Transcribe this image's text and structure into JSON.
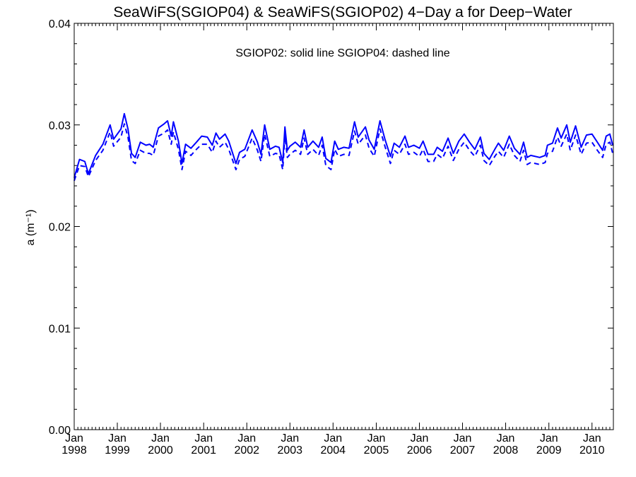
{
  "chart_data": {
    "type": "line",
    "title": "SeaWiFS(SGIOP04) & SeaWiFS(SGIOP02) 4−Day a for Deep−Water",
    "annotation": "SGIOP02: solid line   SGIOP04: dashed line",
    "ylabel": "a (m⁻¹)",
    "xlabel": "",
    "ylim": [
      0.0,
      0.04
    ],
    "xlim": [
      "1998-01-01",
      "2010-07-01"
    ],
    "yticks": [
      "0.00",
      "0.01",
      "0.02",
      "0.03",
      "0.04"
    ],
    "xticks": [
      {
        "month": "Jan",
        "year": "1998"
      },
      {
        "month": "Jan",
        "year": "1999"
      },
      {
        "month": "Jan",
        "year": "2000"
      },
      {
        "month": "Jan",
        "year": "2001"
      },
      {
        "month": "Jan",
        "year": "2002"
      },
      {
        "month": "Jan",
        "year": "2003"
      },
      {
        "month": "Jan",
        "year": "2004"
      },
      {
        "month": "Jan",
        "year": "2005"
      },
      {
        "month": "Jan",
        "year": "2006"
      },
      {
        "month": "Jan",
        "year": "2007"
      },
      {
        "month": "Jan",
        "year": "2008"
      },
      {
        "month": "Jan",
        "year": "2009"
      },
      {
        "month": "Jan",
        "year": "2010"
      }
    ],
    "grid": false,
    "color": "#0000ff",
    "series": [
      {
        "name": "SGIOP02",
        "linestyle": "solid",
        "points": [
          [
            "1998-01-01",
            0.0248
          ],
          [
            "1998-02-15",
            0.0266
          ],
          [
            "1998-04-01",
            0.0264
          ],
          [
            "1998-05-01",
            0.0252
          ],
          [
            "1998-07-01",
            0.027
          ],
          [
            "1998-09-01",
            0.0281
          ],
          [
            "1998-11-01",
            0.03
          ],
          [
            "1998-12-01",
            0.0286
          ],
          [
            "1999-02-01",
            0.0296
          ],
          [
            "1999-03-01",
            0.0311
          ],
          [
            "1999-04-01",
            0.0296
          ],
          [
            "1999-05-01",
            0.0272
          ],
          [
            "1999-06-01",
            0.0268
          ],
          [
            "1999-07-15",
            0.0283
          ],
          [
            "1999-09-01",
            0.028
          ],
          [
            "1999-10-01",
            0.0281
          ],
          [
            "1999-11-01",
            0.0278
          ],
          [
            "1999-12-15",
            0.0297
          ],
          [
            "2000-02-01",
            0.0301
          ],
          [
            "2000-03-01",
            0.0304
          ],
          [
            "2000-04-01",
            0.0289
          ],
          [
            "2000-04-20",
            0.0303
          ],
          [
            "2000-06-01",
            0.0284
          ],
          [
            "2000-07-01",
            0.0262
          ],
          [
            "2000-08-01",
            0.0281
          ],
          [
            "2000-09-15",
            0.0277
          ],
          [
            "2000-11-01",
            0.0283
          ],
          [
            "2000-12-15",
            0.0289
          ],
          [
            "2001-02-01",
            0.0288
          ],
          [
            "2001-03-15",
            0.028
          ],
          [
            "2001-04-15",
            0.0292
          ],
          [
            "2001-05-15",
            0.0286
          ],
          [
            "2001-07-01",
            0.0291
          ],
          [
            "2001-08-01",
            0.0284
          ],
          [
            "2001-10-01",
            0.0262
          ],
          [
            "2001-11-01",
            0.0273
          ],
          [
            "2001-12-15",
            0.0276
          ],
          [
            "2002-02-15",
            0.0295
          ],
          [
            "2002-04-01",
            0.0283
          ],
          [
            "2002-05-01",
            0.0271
          ],
          [
            "2002-06-01",
            0.03
          ],
          [
            "2002-07-15",
            0.0276
          ],
          [
            "2002-09-01",
            0.0279
          ],
          [
            "2002-10-01",
            0.0278
          ],
          [
            "2002-11-01",
            0.0263
          ],
          [
            "2002-11-20",
            0.0298
          ],
          [
            "2002-12-10",
            0.0275
          ],
          [
            "2003-01-01",
            0.0279
          ],
          [
            "2003-02-15",
            0.0283
          ],
          [
            "2003-04-01",
            0.0278
          ],
          [
            "2003-05-01",
            0.0295
          ],
          [
            "2003-06-01",
            0.0278
          ],
          [
            "2003-07-15",
            0.0284
          ],
          [
            "2003-09-01",
            0.0278
          ],
          [
            "2003-10-01",
            0.0288
          ],
          [
            "2003-11-01",
            0.0267
          ],
          [
            "2003-12-15",
            0.0263
          ],
          [
            "2004-01-15",
            0.0284
          ],
          [
            "2004-02-15",
            0.0276
          ],
          [
            "2004-04-01",
            0.0278
          ],
          [
            "2004-05-15",
            0.0277
          ],
          [
            "2004-07-01",
            0.0303
          ],
          [
            "2004-08-01",
            0.0288
          ],
          [
            "2004-10-01",
            0.0298
          ],
          [
            "2004-11-01",
            0.0285
          ],
          [
            "2004-12-15",
            0.0276
          ],
          [
            "2005-02-01",
            0.0304
          ],
          [
            "2005-03-15",
            0.0286
          ],
          [
            "2005-05-01",
            0.0269
          ],
          [
            "2005-06-01",
            0.0282
          ],
          [
            "2005-07-15",
            0.0278
          ],
          [
            "2005-09-01",
            0.0289
          ],
          [
            "2005-10-01",
            0.0278
          ],
          [
            "2005-11-15",
            0.028
          ],
          [
            "2006-01-01",
            0.0277
          ],
          [
            "2006-02-01",
            0.0284
          ],
          [
            "2006-03-15",
            0.0271
          ],
          [
            "2006-05-01",
            0.0271
          ],
          [
            "2006-06-01",
            0.0278
          ],
          [
            "2006-07-15",
            0.0274
          ],
          [
            "2006-09-01",
            0.0287
          ],
          [
            "2006-10-15",
            0.0272
          ],
          [
            "2006-12-01",
            0.0284
          ],
          [
            "2007-01-15",
            0.0291
          ],
          [
            "2007-03-01",
            0.0283
          ],
          [
            "2007-04-15",
            0.0276
          ],
          [
            "2007-06-01",
            0.0288
          ],
          [
            "2007-07-01",
            0.0272
          ],
          [
            "2007-08-15",
            0.0266
          ],
          [
            "2007-10-01",
            0.0276
          ],
          [
            "2007-11-01",
            0.0282
          ],
          [
            "2007-12-15",
            0.0275
          ],
          [
            "2008-02-01",
            0.0289
          ],
          [
            "2008-03-15",
            0.0277
          ],
          [
            "2008-05-01",
            0.0271
          ],
          [
            "2008-06-01",
            0.0283
          ],
          [
            "2008-07-01",
            0.0268
          ],
          [
            "2008-08-01",
            0.027
          ],
          [
            "2008-10-15",
            0.0268
          ],
          [
            "2008-12-01",
            0.027
          ],
          [
            "2008-12-20",
            0.028
          ],
          [
            "2009-02-01",
            0.0282
          ],
          [
            "2009-03-15",
            0.0297
          ],
          [
            "2009-04-15",
            0.0287
          ],
          [
            "2009-06-01",
            0.03
          ],
          [
            "2009-07-01",
            0.0283
          ],
          [
            "2009-08-15",
            0.0299
          ],
          [
            "2009-10-01",
            0.0278
          ],
          [
            "2009-11-15",
            0.029
          ],
          [
            "2010-01-01",
            0.0291
          ],
          [
            "2010-02-15",
            0.0283
          ],
          [
            "2010-04-01",
            0.0275
          ],
          [
            "2010-05-01",
            0.0289
          ],
          [
            "2010-06-01",
            0.0291
          ],
          [
            "2010-06-25",
            0.028
          ]
        ]
      },
      {
        "name": "SGIOP04",
        "linestyle": "dashed",
        "points": [
          [
            "1998-01-01",
            0.0245
          ],
          [
            "1998-02-15",
            0.026
          ],
          [
            "1998-04-01",
            0.0259
          ],
          [
            "1998-05-01",
            0.0249
          ],
          [
            "1998-07-01",
            0.0265
          ],
          [
            "1998-09-01",
            0.0275
          ],
          [
            "1998-11-01",
            0.0293
          ],
          [
            "1998-12-01",
            0.0279
          ],
          [
            "1999-02-01",
            0.0288
          ],
          [
            "1999-03-01",
            0.0301
          ],
          [
            "1999-04-01",
            0.0288
          ],
          [
            "1999-05-01",
            0.0265
          ],
          [
            "1999-06-01",
            0.0262
          ],
          [
            "1999-07-15",
            0.0275
          ],
          [
            "1999-09-01",
            0.0272
          ],
          [
            "1999-10-01",
            0.0272
          ],
          [
            "1999-11-01",
            0.027
          ],
          [
            "1999-12-15",
            0.0289
          ],
          [
            "2000-02-01",
            0.0292
          ],
          [
            "2000-03-01",
            0.0295
          ],
          [
            "2000-04-01",
            0.0281
          ],
          [
            "2000-04-20",
            0.0293
          ],
          [
            "2000-06-01",
            0.0276
          ],
          [
            "2000-07-01",
            0.0256
          ],
          [
            "2000-08-01",
            0.0274
          ],
          [
            "2000-09-15",
            0.027
          ],
          [
            "2000-11-01",
            0.0276
          ],
          [
            "2000-12-15",
            0.0281
          ],
          [
            "2001-02-01",
            0.0281
          ],
          [
            "2001-03-15",
            0.0273
          ],
          [
            "2001-04-15",
            0.0284
          ],
          [
            "2001-05-15",
            0.0278
          ],
          [
            "2001-07-01",
            0.0283
          ],
          [
            "2001-08-01",
            0.0276
          ],
          [
            "2001-10-01",
            0.0256
          ],
          [
            "2001-11-01",
            0.0266
          ],
          [
            "2001-12-15",
            0.0269
          ],
          [
            "2002-02-15",
            0.0287
          ],
          [
            "2002-04-01",
            0.0275
          ],
          [
            "2002-05-01",
            0.0264
          ],
          [
            "2002-06-01",
            0.0291
          ],
          [
            "2002-07-15",
            0.0269
          ],
          [
            "2002-09-01",
            0.0272
          ],
          [
            "2002-10-01",
            0.0271
          ],
          [
            "2002-11-01",
            0.0256
          ],
          [
            "2002-11-20",
            0.0289
          ],
          [
            "2002-12-10",
            0.0268
          ],
          [
            "2003-01-01",
            0.0271
          ],
          [
            "2003-02-15",
            0.0275
          ],
          [
            "2003-04-01",
            0.0271
          ],
          [
            "2003-05-01",
            0.0287
          ],
          [
            "2003-06-01",
            0.0271
          ],
          [
            "2003-07-15",
            0.0276
          ],
          [
            "2003-09-01",
            0.027
          ],
          [
            "2003-10-01",
            0.028
          ],
          [
            "2003-11-01",
            0.026
          ],
          [
            "2003-12-15",
            0.0256
          ],
          [
            "2004-01-15",
            0.0276
          ],
          [
            "2004-02-15",
            0.0269
          ],
          [
            "2004-04-01",
            0.0271
          ],
          [
            "2004-05-15",
            0.027
          ],
          [
            "2004-07-01",
            0.0294
          ],
          [
            "2004-08-01",
            0.0281
          ],
          [
            "2004-10-01",
            0.029
          ],
          [
            "2004-11-01",
            0.0277
          ],
          [
            "2004-12-15",
            0.0269
          ],
          [
            "2005-02-01",
            0.0296
          ],
          [
            "2005-03-15",
            0.0279
          ],
          [
            "2005-05-01",
            0.0262
          ],
          [
            "2005-06-01",
            0.0275
          ],
          [
            "2005-07-15",
            0.0271
          ],
          [
            "2005-09-01",
            0.0281
          ],
          [
            "2005-10-01",
            0.0271
          ],
          [
            "2005-11-15",
            0.0273
          ],
          [
            "2006-01-01",
            0.0269
          ],
          [
            "2006-02-01",
            0.0276
          ],
          [
            "2006-03-15",
            0.0264
          ],
          [
            "2006-05-01",
            0.0264
          ],
          [
            "2006-06-01",
            0.0271
          ],
          [
            "2006-07-15",
            0.0267
          ],
          [
            "2006-09-01",
            0.0279
          ],
          [
            "2006-10-15",
            0.0265
          ],
          [
            "2006-12-01",
            0.0276
          ],
          [
            "2007-01-15",
            0.0283
          ],
          [
            "2007-03-01",
            0.0275
          ],
          [
            "2007-04-15",
            0.0269
          ],
          [
            "2007-06-01",
            0.028
          ],
          [
            "2007-07-01",
            0.0265
          ],
          [
            "2007-08-15",
            0.026
          ],
          [
            "2007-10-01",
            0.0269
          ],
          [
            "2007-11-01",
            0.0274
          ],
          [
            "2007-12-15",
            0.0268
          ],
          [
            "2008-02-01",
            0.0281
          ],
          [
            "2008-03-15",
            0.027
          ],
          [
            "2008-05-01",
            0.0264
          ],
          [
            "2008-06-01",
            0.0275
          ],
          [
            "2008-07-01",
            0.0261
          ],
          [
            "2008-08-01",
            0.0263
          ],
          [
            "2008-10-15",
            0.0261
          ],
          [
            "2008-12-01",
            0.0263
          ],
          [
            "2008-12-20",
            0.0272
          ],
          [
            "2009-02-01",
            0.0274
          ],
          [
            "2009-03-15",
            0.0288
          ],
          [
            "2009-04-15",
            0.0279
          ],
          [
            "2009-06-01",
            0.0291
          ],
          [
            "2009-07-01",
            0.0275
          ],
          [
            "2009-08-15",
            0.029
          ],
          [
            "2009-10-01",
            0.0271
          ],
          [
            "2009-11-15",
            0.0282
          ],
          [
            "2010-01-01",
            0.0283
          ],
          [
            "2010-02-15",
            0.0275
          ],
          [
            "2010-04-01",
            0.0268
          ],
          [
            "2010-05-01",
            0.0281
          ],
          [
            "2010-06-01",
            0.0283
          ],
          [
            "2010-06-25",
            0.0272
          ]
        ]
      }
    ]
  }
}
